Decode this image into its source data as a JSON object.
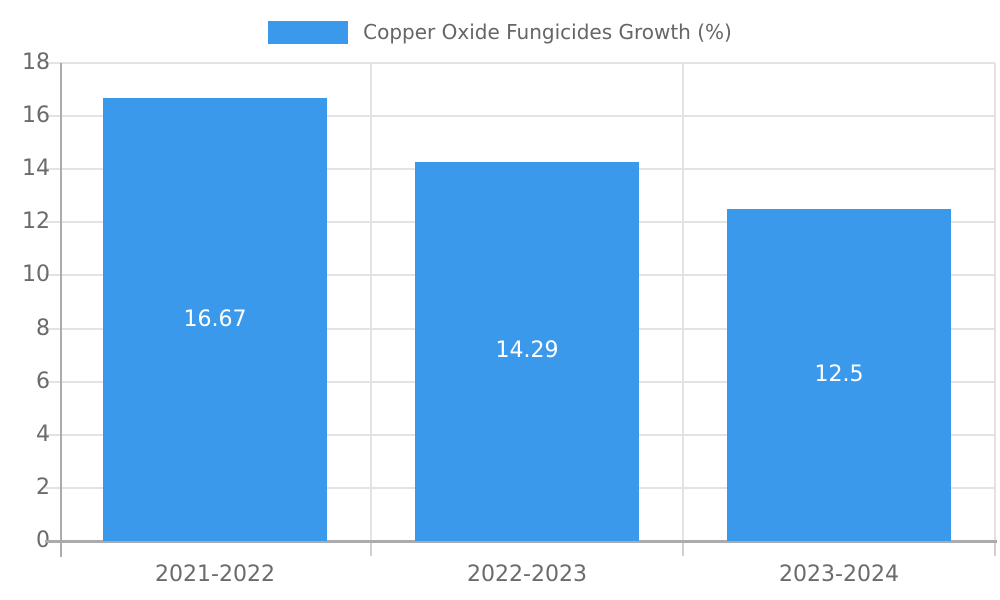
{
  "chart_data": {
    "type": "bar",
    "legend": "Copper Oxide Fungicides Growth (%)",
    "legend_position": "top-center",
    "categories": [
      "2021-2022",
      "2022-2023",
      "2023-2024"
    ],
    "values": [
      16.67,
      14.29,
      12.5
    ],
    "value_labels": [
      "16.67",
      "14.29",
      "12.5"
    ],
    "xlabel": "",
    "ylabel": "",
    "ylim": [
      0,
      18
    ],
    "yticks": [
      0,
      2,
      4,
      6,
      8,
      10,
      12,
      14,
      16,
      18
    ],
    "grid": true,
    "colors": {
      "bar": "#3A99EB",
      "grid": "#e3e3e3",
      "axis": "#ababab",
      "x_tick_mark": "#d0d0d0",
      "tick_text": "#6b6b6b",
      "legend_text": "#666666",
      "value_text": "#ffffff",
      "background": "#ffffff"
    }
  }
}
